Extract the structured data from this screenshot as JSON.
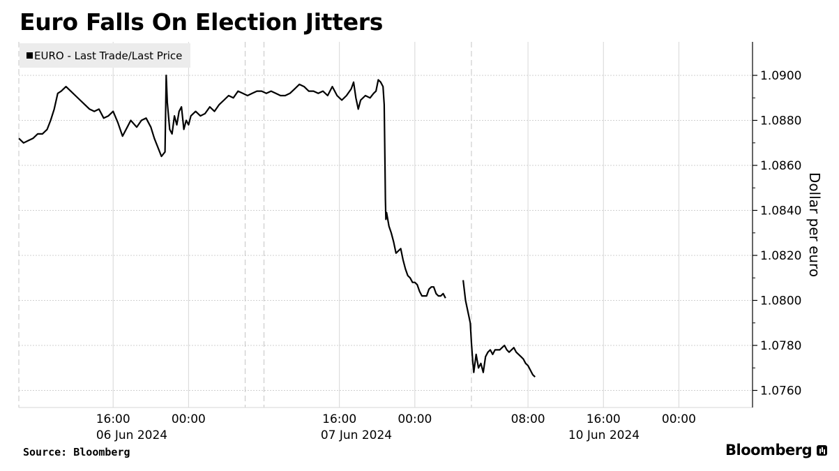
{
  "chart_data": {
    "type": "line",
    "title": "Euro Falls On Election Jitters",
    "ylabel": "Dollar per euro",
    "ylim": [
      1.0754,
      1.0916
    ],
    "y_ticks": [
      "1.0900",
      "1.0880",
      "1.0860",
      "1.0840",
      "1.0820",
      "1.0800",
      "1.0780",
      "1.0760"
    ],
    "y_tick_values": [
      1.09,
      1.088,
      1.086,
      1.084,
      1.082,
      1.08,
      1.078,
      1.076
    ],
    "x_ticks": [
      {
        "time": "16:00",
        "date": "06 Jun 2024"
      },
      {
        "time": "00:00",
        "date": ""
      },
      {
        "time": "16:00",
        "date": "07 Jun 2024"
      },
      {
        "time": "00:00",
        "date": ""
      },
      {
        "time": "08:00",
        "date": "10 Jun 2024"
      },
      {
        "time": "16:00",
        "date": ""
      },
      {
        "time": "00:00",
        "date": ""
      }
    ],
    "legend": [
      "EURO - Last Trade/Last Price"
    ],
    "legend_position": "top-left",
    "grid": true,
    "line_color": "#000000",
    "series": [
      {
        "name": "EURO - Last Trade/Last Price",
        "segments": [
          [
            [
              0,
              1.0872
            ],
            [
              4,
              1.087
            ],
            [
              8,
              1.0871
            ],
            [
              12,
              1.0872
            ],
            [
              16,
              1.0874
            ],
            [
              20,
              1.0874
            ],
            [
              24,
              1.0876
            ],
            [
              27,
              1.088
            ],
            [
              30,
              1.0885
            ],
            [
              33,
              1.0892
            ],
            [
              36,
              1.0893
            ],
            [
              40,
              1.0895
            ],
            [
              44,
              1.0893
            ],
            [
              48,
              1.0891
            ],
            [
              52,
              1.0889
            ],
            [
              56,
              1.0887
            ],
            [
              60,
              1.0885
            ],
            [
              64,
              1.0884
            ],
            [
              68,
              1.0885
            ],
            [
              72,
              1.0881
            ],
            [
              76,
              1.0882
            ],
            [
              80,
              1.0884
            ],
            [
              84,
              1.0879
            ],
            [
              88,
              1.0873
            ],
            [
              92,
              1.0877
            ],
            [
              95,
              1.088
            ],
            [
              100,
              1.0877
            ],
            [
              104,
              1.088
            ],
            [
              108,
              1.0881
            ],
            [
              112,
              1.0877
            ],
            [
              115,
              1.0872
            ],
            [
              118,
              1.0868
            ],
            [
              121,
              1.0864
            ],
            [
              124,
              1.0866
            ],
            [
              125,
              1.09
            ],
            [
              126,
              1.0888
            ],
            [
              128,
              1.0876
            ],
            [
              130,
              1.0874
            ],
            [
              132,
              1.0882
            ],
            [
              134,
              1.0878
            ],
            [
              136,
              1.0884
            ],
            [
              138,
              1.0886
            ],
            [
              140,
              1.0876
            ],
            [
              142,
              1.088
            ],
            [
              144,
              1.0878
            ],
            [
              146,
              1.0882
            ],
            [
              150,
              1.0884
            ],
            [
              154,
              1.0882
            ],
            [
              158,
              1.0883
            ],
            [
              162,
              1.0886
            ],
            [
              166,
              1.0884
            ],
            [
              170,
              1.0887
            ],
            [
              174,
              1.0889
            ],
            [
              178,
              1.0891
            ],
            [
              182,
              1.089
            ],
            [
              186,
              1.0893
            ],
            [
              190,
              1.0892
            ],
            [
              194,
              1.0891
            ],
            [
              198,
              1.0892
            ],
            [
              202,
              1.0893
            ],
            [
              206,
              1.0893
            ],
            [
              210,
              1.0892
            ],
            [
              214,
              1.0893
            ],
            [
              218,
              1.0892
            ],
            [
              222,
              1.0891
            ],
            [
              226,
              1.0891
            ],
            [
              230,
              1.0892
            ],
            [
              234,
              1.0894
            ],
            [
              238,
              1.0896
            ],
            [
              242,
              1.0895
            ],
            [
              246,
              1.0893
            ],
            [
              250,
              1.0893
            ],
            [
              254,
              1.0892
            ],
            [
              258,
              1.0893
            ],
            [
              262,
              1.0891
            ],
            [
              266,
              1.0895
            ],
            [
              270,
              1.0891
            ],
            [
              274,
              1.0889
            ],
            [
              278,
              1.0891
            ],
            [
              282,
              1.0894
            ],
            [
              284,
              1.0897
            ],
            [
              286,
              1.089
            ],
            [
              288,
              1.0885
            ],
            [
              290,
              1.0889
            ],
            [
              294,
              1.0891
            ],
            [
              298,
              1.089
            ],
            [
              301,
              1.0892
            ],
            [
              303,
              1.0893
            ],
            [
              305,
              1.0898
            ],
            [
              307,
              1.0897
            ],
            [
              309,
              1.0895
            ],
            [
              310,
              1.0887
            ],
            [
              310.3,
              1.0875
            ],
            [
              310.7,
              1.0858
            ],
            [
              311,
              1.0845
            ],
            [
              311.4,
              1.0836
            ],
            [
              312,
              1.0839
            ],
            [
              314,
              1.0833
            ],
            [
              316,
              1.083
            ],
            [
              318,
              1.0826
            ],
            [
              320,
              1.0821
            ],
            [
              322,
              1.0822
            ],
            [
              324,
              1.0823
            ],
            [
              326,
              1.0818
            ],
            [
              328,
              1.0814
            ],
            [
              330,
              1.0811
            ],
            [
              332,
              1.081
            ],
            [
              334,
              1.0808
            ],
            [
              336,
              1.0808
            ],
            [
              338,
              1.0807
            ],
            [
              340,
              1.0804
            ],
            [
              342,
              1.0802
            ],
            [
              344,
              1.0802
            ],
            [
              346,
              1.0802
            ],
            [
              348,
              1.0805
            ],
            [
              350,
              1.0806
            ],
            [
              352,
              1.0806
            ],
            [
              354,
              1.0803
            ],
            [
              356,
              1.0802
            ],
            [
              358,
              1.0802
            ],
            [
              360,
              1.0803
            ],
            [
              362,
              1.0801
            ]
          ],
          [
            [
              377,
              1.0809
            ],
            [
              379,
              1.08
            ],
            [
              381,
              1.0795
            ],
            [
              383,
              1.079
            ],
            [
              384,
              1.0781
            ],
            [
              385,
              1.0774
            ],
            [
              386,
              1.0768
            ],
            [
              388,
              1.0776
            ],
            [
              390,
              1.077
            ],
            [
              392,
              1.0772
            ],
            [
              394,
              1.0768
            ],
            [
              396,
              1.0775
            ],
            [
              398,
              1.0777
            ],
            [
              400,
              1.0778
            ],
            [
              402,
              1.0776
            ],
            [
              404,
              1.0778
            ],
            [
              406,
              1.0778
            ],
            [
              408,
              1.0778
            ],
            [
              410,
              1.0779
            ],
            [
              412,
              1.078
            ],
            [
              414,
              1.0778
            ],
            [
              416,
              1.0777
            ],
            [
              418,
              1.0778
            ],
            [
              420,
              1.0779
            ],
            [
              422,
              1.0777
            ],
            [
              424,
              1.0776
            ],
            [
              426,
              1.0775
            ],
            [
              428,
              1.0774
            ],
            [
              430,
              1.0772
            ],
            [
              432,
              1.0771
            ],
            [
              434,
              1.0769
            ],
            [
              436,
              1.0767
            ],
            [
              438,
              1.0766
            ]
          ]
        ]
      }
    ]
  },
  "source": "Source: Bloomberg",
  "brand": "Bloomberg"
}
